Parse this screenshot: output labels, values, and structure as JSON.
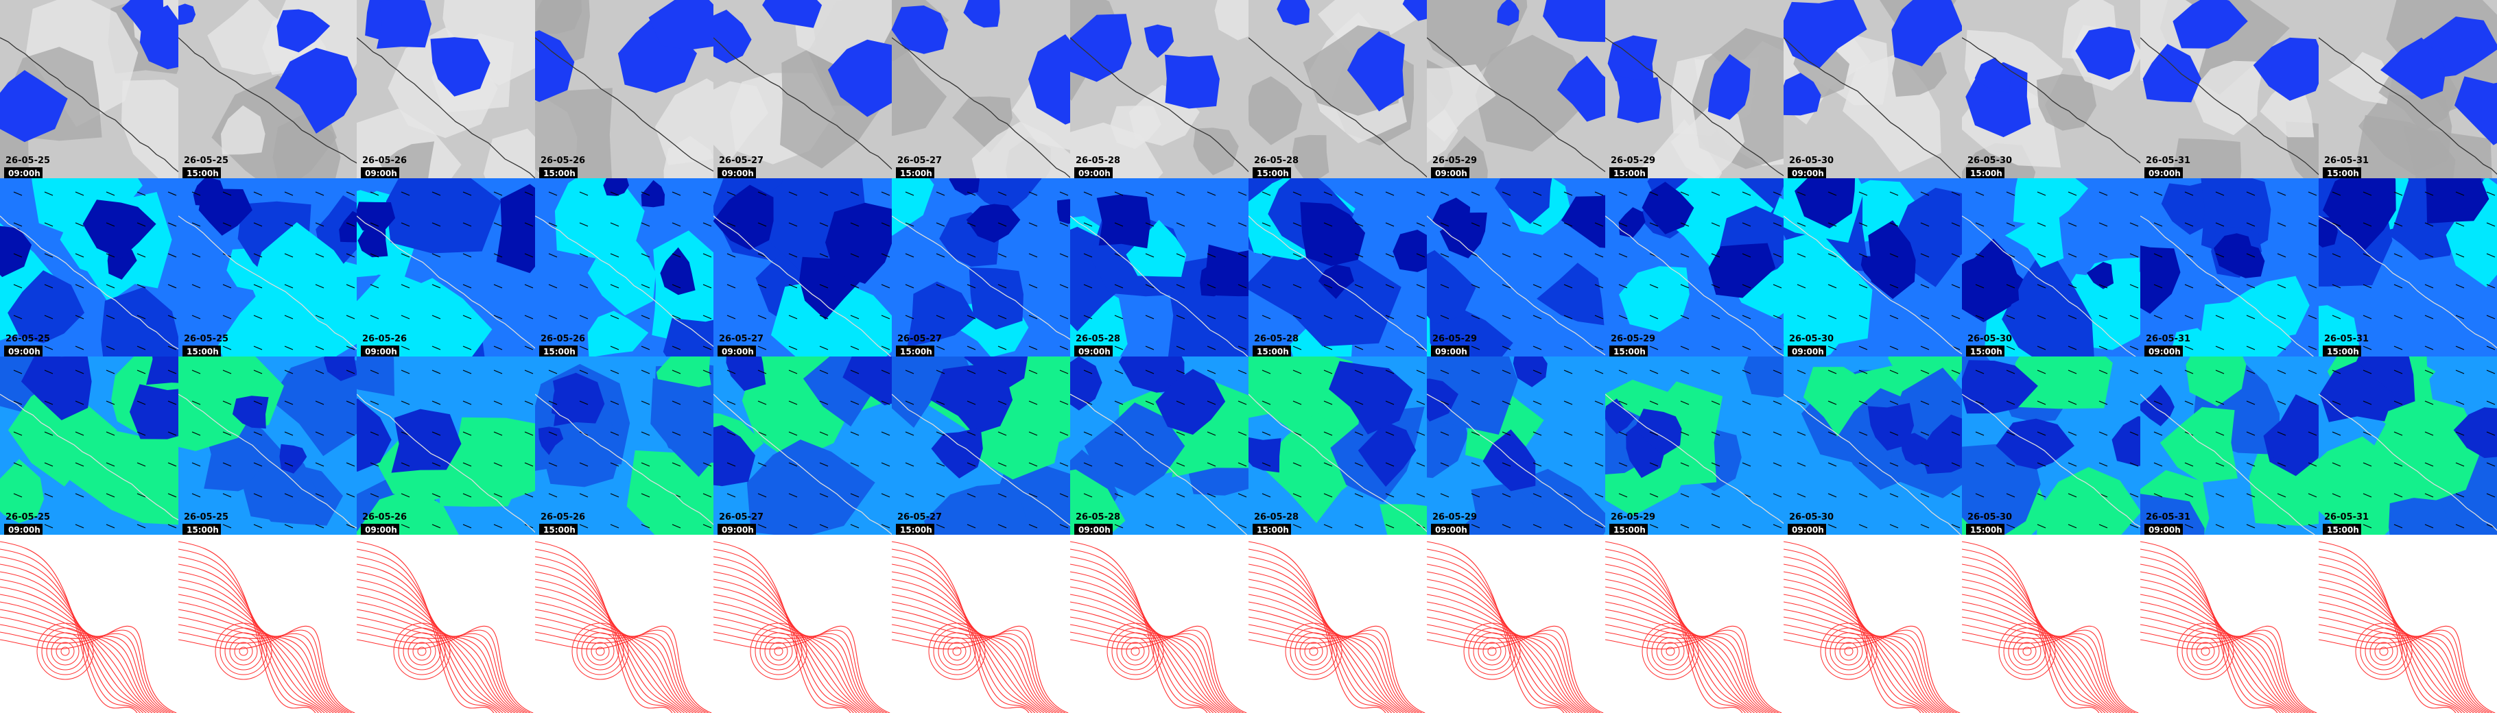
{
  "frames": [
    {
      "date": "26-05-25",
      "time": "09:00h"
    },
    {
      "date": "26-05-25",
      "time": "15:00h"
    },
    {
      "date": "26-05-26",
      "time": "09:00h"
    },
    {
      "date": "26-05-26",
      "time": "15:00h"
    },
    {
      "date": "26-05-27",
      "time": "09:00h"
    },
    {
      "date": "26-05-27",
      "time": "15:00h"
    },
    {
      "date": "26-05-28",
      "time": "09:00h"
    },
    {
      "date": "26-05-28",
      "time": "15:00h"
    },
    {
      "date": "26-05-29",
      "time": "09:00h"
    },
    {
      "date": "26-05-29",
      "time": "15:00h"
    },
    {
      "date": "26-05-30",
      "time": "09:00h"
    },
    {
      "date": "26-05-30",
      "time": "15:00h"
    },
    {
      "date": "26-05-31",
      "time": "09:00h"
    },
    {
      "date": "26-05-31",
      "time": "15:00h"
    }
  ]
}
